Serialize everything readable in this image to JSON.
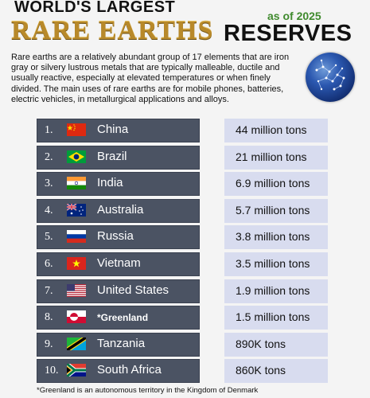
{
  "header": {
    "title_line1": "WORLD'S LARGEST",
    "title_main": "RARE EARTHS",
    "title_reserves": "RESERVES",
    "as_of": "as of 2025",
    "description": "Rare earths are a relatively abundant group of 17 elements that are iron gray or silvery lustrous metals that are typically malleable, ductile and usually reactive, especially at elevated temperatures or when finely divided. The main uses of rare earths are for mobile phones, batteries, electric vehicles, in metallurgical applications and alloys."
  },
  "footnote": "*Greenland is an autonomous territory in the Kingdom of Denmark",
  "chart_data": {
    "type": "table",
    "unit": "tons",
    "rows": [
      {
        "rank": "1.",
        "country": "China",
        "value_label": "44 million tons",
        "value": 44000000,
        "flag": "china-flag"
      },
      {
        "rank": "2.",
        "country": "Brazil",
        "value_label": "21 million tons",
        "value": 21000000,
        "flag": "brazil-flag"
      },
      {
        "rank": "3.",
        "country": "India",
        "value_label": "6.9 million tons",
        "value": 6900000,
        "flag": "india-flag"
      },
      {
        "rank": "4.",
        "country": "Australia",
        "value_label": "5.7 million tons",
        "value": 5700000,
        "flag": "australia-flag"
      },
      {
        "rank": "5.",
        "country": "Russia",
        "value_label": "3.8 million tons",
        "value": 3800000,
        "flag": "russia-flag"
      },
      {
        "rank": "6.",
        "country": "Vietnam",
        "value_label": "3.5 million tons",
        "value": 3500000,
        "flag": "vietnam-flag"
      },
      {
        "rank": "7.",
        "country": "United States",
        "value_label": "1.9 million tons",
        "value": 1900000,
        "flag": "usa-flag"
      },
      {
        "rank": "8.",
        "country": "*Greenland",
        "value_label": "1.5 million tons",
        "value": 1500000,
        "flag": "greenland-flag"
      },
      {
        "rank": "9.",
        "country": "Tanzania",
        "value_label": "890K tons",
        "value": 890000,
        "flag": "tanzania-flag"
      },
      {
        "rank": "10.",
        "country": "South Africa",
        "value_label": "860K tons",
        "value": 860000,
        "flag": "south-africa-flag"
      }
    ]
  }
}
